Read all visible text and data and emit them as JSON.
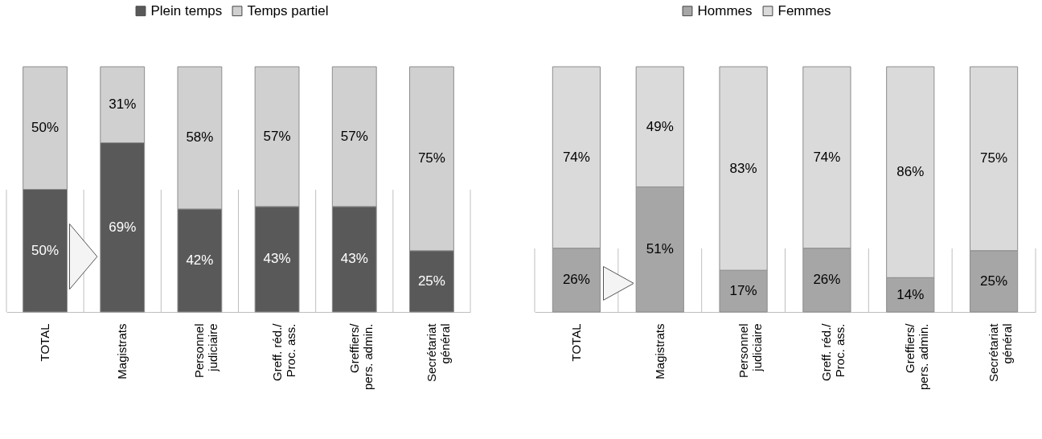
{
  "chart_data": [
    {
      "type": "bar",
      "stacked": true,
      "legend": "top",
      "categories": [
        "TOTAL",
        "Magistrats",
        "Personnel\njudiciaire",
        "Greff. réd./\nProc. ass.",
        "Greffiers/\npers. admin.",
        "Secrétariat\ngénéral"
      ],
      "series": [
        {
          "name": "Plein temps",
          "color": "#595959",
          "values": [
            50,
            69,
            42,
            43,
            43,
            25
          ],
          "value_labels": [
            "50%",
            "69%",
            "42%",
            "43%",
            "43%",
            "25%"
          ]
        },
        {
          "name": "Temps partiel",
          "color": "#d0d0d0",
          "values": [
            50,
            31,
            58,
            57,
            57,
            75
          ],
          "value_labels": [
            "50%",
            "31%",
            "58%",
            "57%",
            "57%",
            "75%"
          ]
        }
      ]
    },
    {
      "type": "bar",
      "stacked": true,
      "legend": "top",
      "categories": [
        "TOTAL",
        "Magistrats",
        "Personnel\njudiciaire",
        "Greff. réd./\nProc. ass.",
        "Greffiers/\npers. admin.",
        "Secrétariat\ngénéral"
      ],
      "series": [
        {
          "name": "Hommes",
          "color": "#a6a6a6",
          "values": [
            26,
            51,
            17,
            26,
            14,
            25
          ],
          "value_labels": [
            "26%",
            "51%",
            "17%",
            "26%",
            "14%",
            "25%"
          ]
        },
        {
          "name": "Femmes",
          "color": "#dadada",
          "values": [
            74,
            49,
            83,
            74,
            86,
            75
          ],
          "value_labels": [
            "74%",
            "49%",
            "83%",
            "74%",
            "86%",
            "75%"
          ]
        }
      ]
    }
  ]
}
